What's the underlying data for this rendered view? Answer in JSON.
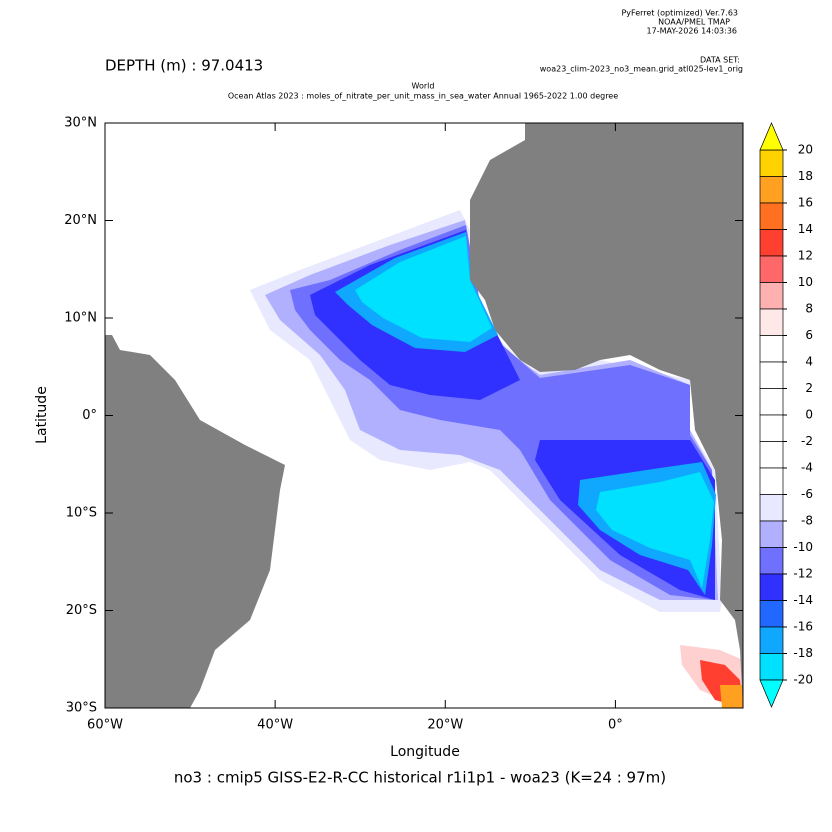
{
  "chart_data": {
    "type": "map",
    "software": "PyFerret (optimized) Ver.7.63",
    "organization": "NOAA/PMEL TMAP",
    "timestamp": "17-MAY-2026 14:03:36",
    "dataset_label": "DATA SET:",
    "dataset": "woa23_clim-2023_no3_mean.grid_atl025-lev1_orig",
    "depth_label": "DEPTH (m) : 97.0413",
    "title_line1": "World",
    "title_line2": "Ocean Atlas 2023 : moles_of_nitrate_per_unit_mass_in_sea_water Annual 1965-2022 1.00 degree",
    "xlabel": "Longitude",
    "ylabel": "Latitude",
    "caption": "no3 : cmip5 GISS-E2-R-CC historical r1i1p1 - woa23  (K=24 : 97m)",
    "xlim": [
      -60,
      15
    ],
    "ylim": [
      -30,
      30
    ],
    "xticks": [
      {
        "value": -60,
        "label": "60°W"
      },
      {
        "value": -40,
        "label": "40°W"
      },
      {
        "value": -20,
        "label": "20°W"
      },
      {
        "value": 0,
        "label": "0°"
      }
    ],
    "yticks": [
      {
        "value": 30,
        "label": "30°N"
      },
      {
        "value": 20,
        "label": "20°N"
      },
      {
        "value": 10,
        "label": "10°N"
      },
      {
        "value": 0,
        "label": "0°"
      },
      {
        "value": -10,
        "label": "10°S"
      },
      {
        "value": -20,
        "label": "20°S"
      },
      {
        "value": -30,
        "label": "30°S"
      }
    ],
    "land_color": "#808080",
    "colorbar": {
      "levels": [
        20,
        18,
        16,
        14,
        12,
        10,
        8,
        6,
        4,
        2,
        0,
        -2,
        -4,
        -6,
        -8,
        -10,
        -12,
        -14,
        -16,
        -18,
        -20
      ],
      "colors": [
        "#ffd200",
        "#ffa020",
        "#ff7020",
        "#ff4030",
        "#ff6868",
        "#ffb0b0",
        "#ffe8e8",
        "#ffffff",
        "#ffffff",
        "#ffffff",
        "#ffffff",
        "#ffffff",
        "#ffffff",
        "#e8e8ff",
        "#b0b0ff",
        "#7070ff",
        "#3030ff",
        "#2068ff",
        "#10a8ff",
        "#00e0ff"
      ],
      "over_color": "#ffff00",
      "under_color": "#00ffff"
    }
  }
}
